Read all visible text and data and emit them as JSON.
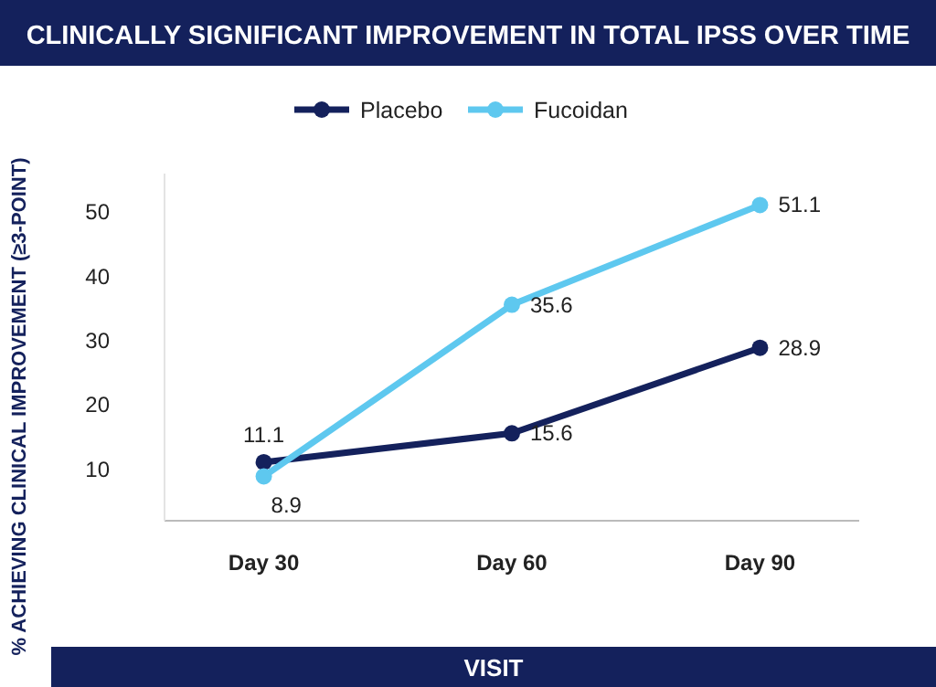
{
  "chart_data": {
    "type": "line",
    "title": "CLINICALLY SIGNIFICANT IMPROVEMENT IN TOTAL IPSS OVER TIME",
    "xlabel": "VISIT",
    "ylabel": "% ACHIEVING CLINICAL IMPROVEMENT (≥3-POINT)",
    "categories": [
      "Day 30",
      "Day 60",
      "Day 90"
    ],
    "series": [
      {
        "name": "Placebo",
        "color": "#14215c",
        "values": [
          11.1,
          15.6,
          28.9
        ]
      },
      {
        "name": "Fucoidan",
        "color": "#5ec8ef",
        "values": [
          8.9,
          35.6,
          51.1
        ]
      }
    ],
    "ylim": [
      2,
      56
    ],
    "yticks": [
      10,
      20,
      30,
      40,
      50
    ],
    "marker": "circle",
    "data_labels": true,
    "legend": "top",
    "grid": false
  }
}
